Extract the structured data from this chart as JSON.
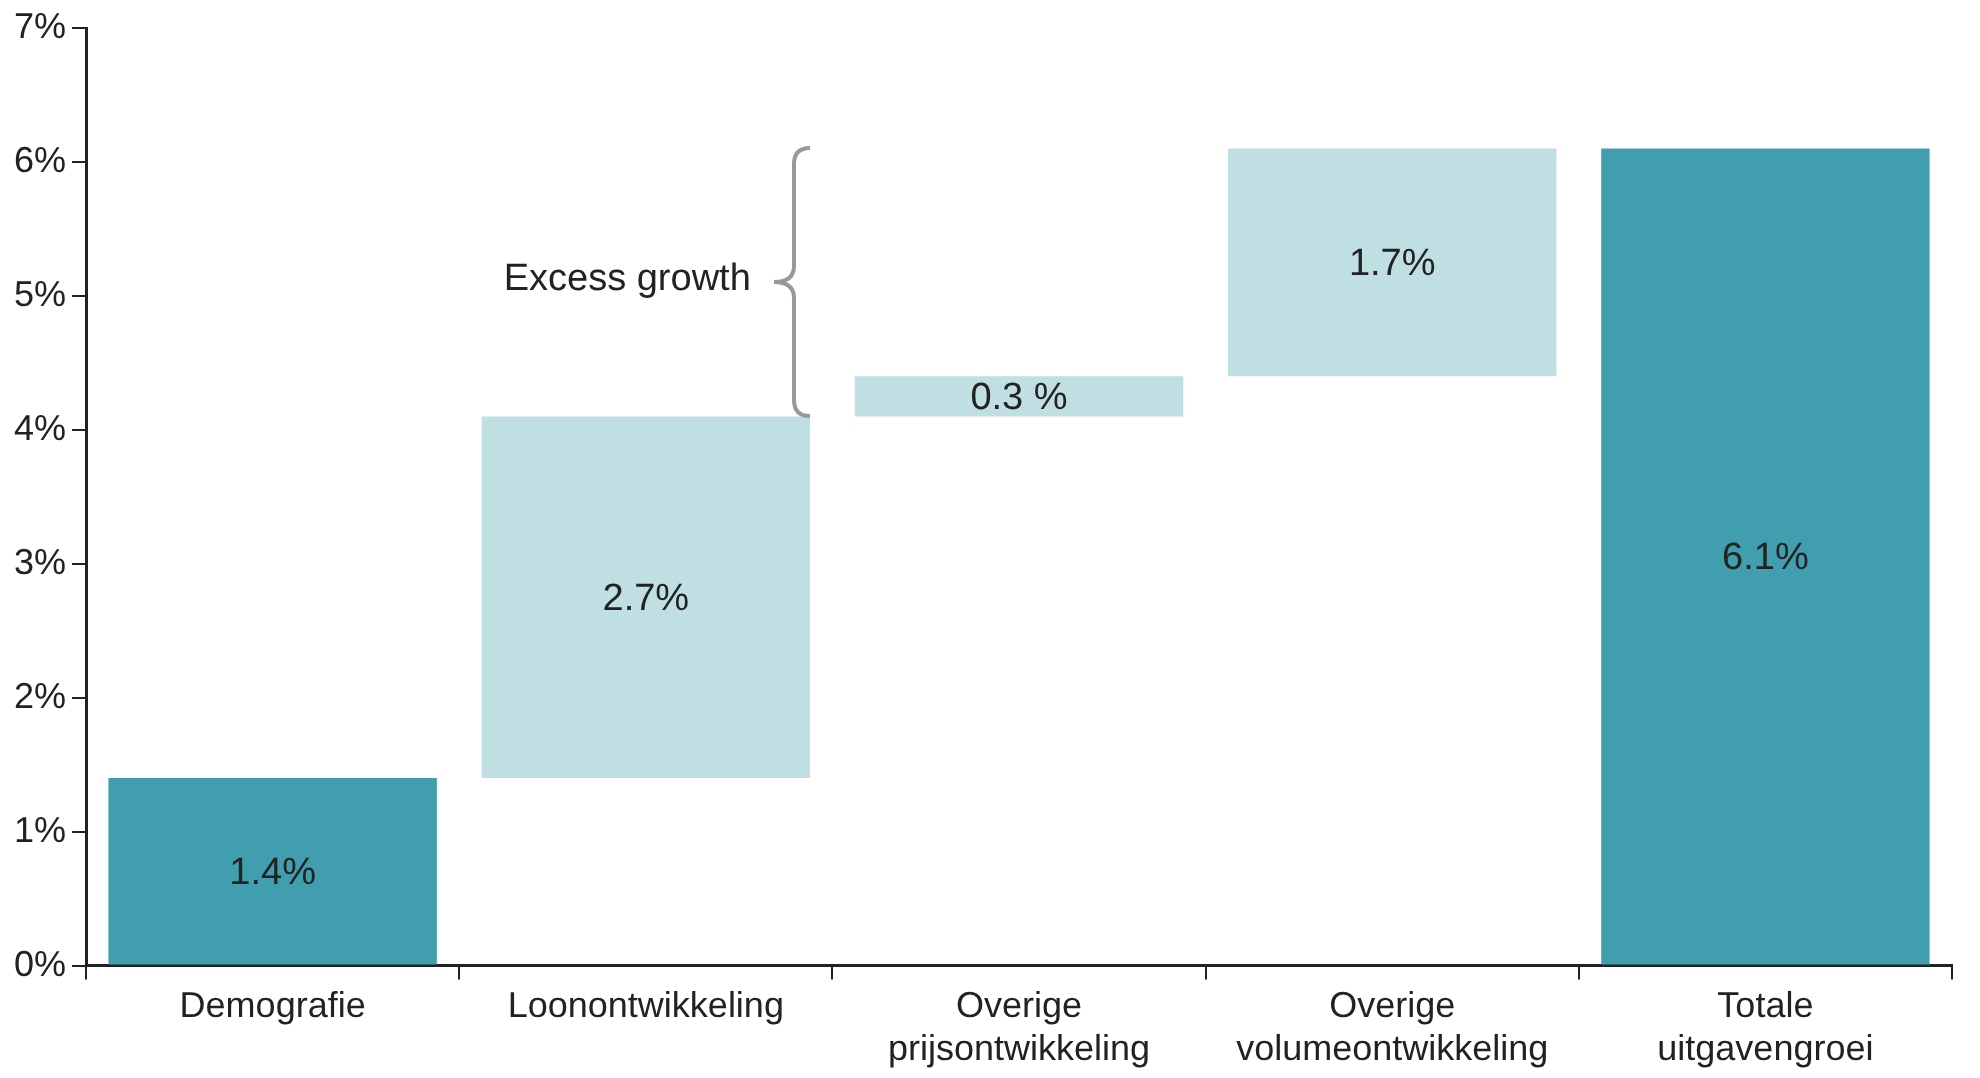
{
  "chart_data": {
    "type": "bar",
    "categories": [
      "Demografie",
      "Loonontwikkeling",
      "Overige prijsontwikkeling",
      "Overige volumeontwikkeling",
      "Totale uitgavengroei"
    ],
    "values": [
      1.4,
      2.7,
      0.3,
      1.7,
      6.1
    ],
    "base": [
      0,
      1.4,
      4.1,
      4.4,
      0
    ],
    "colors": [
      "#409eae",
      "#bfdfe3",
      "#bfdfe3",
      "#bfdfe3",
      "#409eae"
    ],
    "value_labels": [
      "1.4%",
      "2.7%",
      "0.3 %",
      "1.7%",
      "6.1%"
    ],
    "ylim": [
      0,
      7
    ],
    "yticks": [
      {
        "value": 0,
        "label": "0%"
      },
      {
        "value": 1,
        "label": "1%"
      },
      {
        "value": 2,
        "label": "2%"
      },
      {
        "value": 3,
        "label": "3%"
      },
      {
        "value": 4,
        "label": "4%"
      },
      {
        "value": 5,
        "label": "5%"
      },
      {
        "value": 6,
        "label": "6%"
      },
      {
        "value": 7,
        "label": "7%"
      }
    ],
    "annotations": [
      "Excess growth"
    ],
    "grid": false,
    "legend": false
  }
}
